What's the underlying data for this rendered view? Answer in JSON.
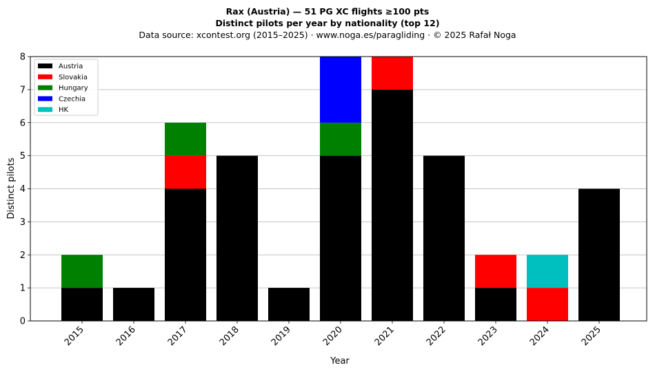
{
  "chart_data": {
    "type": "bar",
    "stacked": true,
    "title": "Rax (Austria)  —  51 PG XC flights ≥100 pts",
    "title_line2": "Distinct pilots per year by nationality (top 12)",
    "subtitle": "Data source: xcontest.org (2015–2025)  ·  www.noga.es/paragliding  ·  © 2025 Rafał Noga",
    "xlabel": "Year",
    "ylabel": "Distinct pilots",
    "ylim": [
      0,
      8
    ],
    "yticks": [
      "0",
      "1",
      "2",
      "3",
      "4",
      "5",
      "6",
      "7",
      "8"
    ],
    "grid": "horizontal",
    "legend_position": "top-left",
    "categories": [
      "2015",
      "2016",
      "2017",
      "2018",
      "2019",
      "2020",
      "2021",
      "2022",
      "2023",
      "2024",
      "2025"
    ],
    "series": [
      {
        "name": "Austria",
        "color": "#000000",
        "values": [
          1,
          1,
          4,
          5,
          1,
          5,
          7,
          5,
          1,
          0,
          4
        ]
      },
      {
        "name": "Slovakia",
        "color": "#ff0000",
        "values": [
          0,
          0,
          1,
          0,
          0,
          0,
          1,
          0,
          1,
          1,
          0
        ]
      },
      {
        "name": "Hungary",
        "color": "#008000",
        "values": [
          1,
          0,
          1,
          0,
          0,
          1,
          0,
          0,
          0,
          0,
          0
        ]
      },
      {
        "name": "Czechia",
        "color": "#0000ff",
        "values": [
          0,
          0,
          0,
          0,
          0,
          2,
          0,
          0,
          0,
          0,
          0
        ]
      },
      {
        "name": "HK",
        "color": "#00bfbf",
        "values": [
          0,
          0,
          0,
          0,
          0,
          0,
          0,
          0,
          0,
          1,
          0
        ]
      }
    ]
  }
}
